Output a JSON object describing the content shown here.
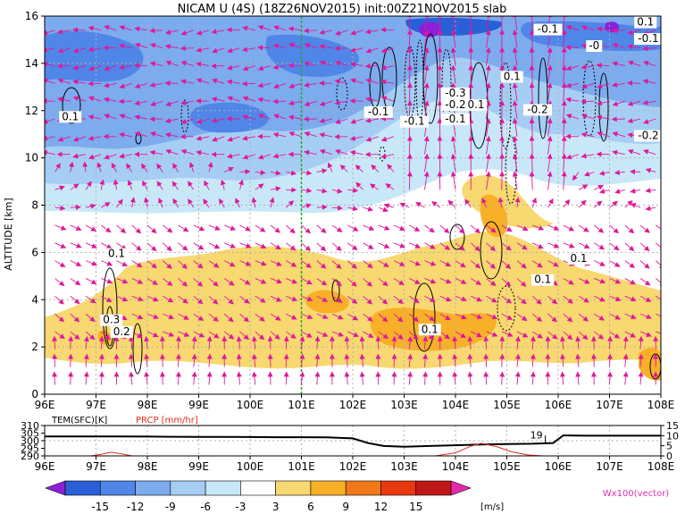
{
  "title": "NICAM U (4S) (18Z26NOV2015) init:00Z21NOV2015 slab",
  "chart_data": [
    {
      "type": "heatmap",
      "variable": "U",
      "units": "m/s",
      "ylabel": "ALTITUDE [km]",
      "x_ticks": [
        "96E",
        "97E",
        "98E",
        "99E",
        "100E",
        "101E",
        "102E",
        "103E",
        "104E",
        "105E",
        "106E",
        "107E",
        "108E"
      ],
      "x_tick_values": [
        96,
        97,
        98,
        99,
        100,
        101,
        102,
        103,
        104,
        105,
        106,
        107,
        108
      ],
      "xlim": [
        96,
        108
      ],
      "y_ticks": [
        "0",
        "2",
        "4",
        "6",
        "8",
        "10",
        "12",
        "14",
        "16"
      ],
      "y_tick_values": [
        0,
        2,
        4,
        6,
        8,
        10,
        12,
        14,
        16
      ],
      "ylim": [
        0,
        16
      ],
      "grid": true,
      "reference_line_lon": 101,
      "contour_labels": [
        {
          "text": "0.1",
          "lon": 96.5,
          "alt": 11.6
        },
        {
          "text": "0.1",
          "lon": 97.4,
          "alt": 5.8
        },
        {
          "text": "0.3",
          "lon": 97.3,
          "alt": 3.0
        },
        {
          "text": "0.2",
          "lon": 97.5,
          "alt": 2.5
        },
        {
          "text": "-0.1",
          "lon": 102.5,
          "alt": 11.8
        },
        {
          "text": "-0.1",
          "lon": 103.2,
          "alt": 11.4
        },
        {
          "text": "-0.3",
          "lon": 104.0,
          "alt": 12.6
        },
        {
          "text": "-0.2",
          "lon": 104.0,
          "alt": 12.1
        },
        {
          "text": "0.1",
          "lon": 104.4,
          "alt": 12.1
        },
        {
          "text": "-0.1",
          "lon": 104.0,
          "alt": 11.5
        },
        {
          "text": "-0.1",
          "lon": 105.8,
          "alt": 15.3
        },
        {
          "text": "-0",
          "lon": 106.7,
          "alt": 14.6
        },
        {
          "text": "0.1",
          "lon": 107.7,
          "alt": 15.6
        },
        {
          "text": "-0.1",
          "lon": 108.5,
          "alt": 14.9
        },
        {
          "text": "0.1",
          "lon": 105.1,
          "alt": 13.3
        },
        {
          "text": "-0.2",
          "lon": 105.6,
          "alt": 11.9
        },
        {
          "text": "-0.2",
          "lon": 108.3,
          "alt": 10.8
        },
        {
          "text": "0.1",
          "lon": 106.4,
          "alt": 5.6
        },
        {
          "text": "0.1",
          "lon": 105.7,
          "alt": 4.7
        },
        {
          "text": "0.1",
          "lon": 103.5,
          "alt": 2.6
        }
      ]
    },
    {
      "type": "line",
      "left_label": "TEM(SFC)[K]",
      "right_label": "PRCP [mm/hr]",
      "left_ticks": [
        "310",
        "305",
        "300",
        "295",
        "290"
      ],
      "left_tick_values": [
        310,
        305,
        300,
        295,
        290
      ],
      "right_ticks": [
        "15",
        "10",
        "5",
        "0"
      ],
      "right_tick_values": [
        15,
        10,
        5,
        0
      ],
      "x_ticks": [
        "96E",
        "97E",
        "98E",
        "99E",
        "100E",
        "101E",
        "102E",
        "103E",
        "104E",
        "105E",
        "106E",
        "107E",
        "108E"
      ],
      "x_tick_values": [
        96,
        97,
        98,
        99,
        100,
        101,
        102,
        103,
        104,
        105,
        106,
        107,
        108
      ],
      "series": [
        {
          "name": "TEM(SFC)[K]",
          "color": "#000000",
          "lon": [
            96,
            96.5,
            97,
            97.5,
            98,
            98.5,
            99,
            99.5,
            100,
            100.5,
            101,
            101.5,
            102,
            102.3,
            102.6,
            103,
            103.5,
            104,
            104.5,
            105,
            105.5,
            105.9,
            106.1,
            106.5,
            107,
            107.5,
            108
          ],
          "values": [
            302.8,
            302.8,
            302.8,
            302.8,
            302.7,
            302.6,
            302.5,
            302.5,
            302.4,
            302.3,
            302.3,
            302.2,
            301.5,
            298.5,
            296.5,
            296.0,
            296.5,
            297.0,
            297.5,
            297.8,
            298.0,
            298.5,
            303.5,
            303.3,
            303.3,
            303.3,
            303.3
          ]
        },
        {
          "name": "PRCP [mm/hr]",
          "color": "#e03020",
          "lon": [
            96,
            96.9,
            97.1,
            97.3,
            97.5,
            97.7,
            98,
            100,
            102,
            103,
            103.6,
            104.0,
            104.3,
            104.5,
            104.8,
            105.1,
            105.4,
            105.7,
            106,
            108
          ],
          "values": [
            0,
            0,
            0.8,
            1.8,
            1.0,
            0,
            0,
            0,
            0,
            0,
            0,
            1.5,
            4.8,
            6.2,
            4.6,
            2.0,
            0.5,
            0,
            0,
            0
          ]
        }
      ],
      "annotation": {
        "text": "19",
        "lon": 105.75
      }
    }
  ],
  "colorbar": {
    "ticks": [
      "-15",
      "-12",
      "-9",
      "-6",
      "-3",
      "3",
      "6",
      "9",
      "12",
      "15"
    ],
    "units": "[m/s]",
    "colors": [
      "#8c20d8",
      "#2a5fd8",
      "#4f86e8",
      "#7cabee",
      "#a6cef4",
      "#c8e8f8",
      "#ffffff",
      "#f8d870",
      "#f8b028",
      "#f07818",
      "#e83810",
      "#c01818",
      "#e828a8"
    ],
    "vector_label": "Wx100(vector)"
  },
  "colors": {
    "vector": "#e0189a",
    "ref_line": "#22aa22",
    "prcp": "#e03020",
    "tem": "#000000",
    "vector_legend": "#e030b0",
    "prcp_label": "#e03020"
  }
}
